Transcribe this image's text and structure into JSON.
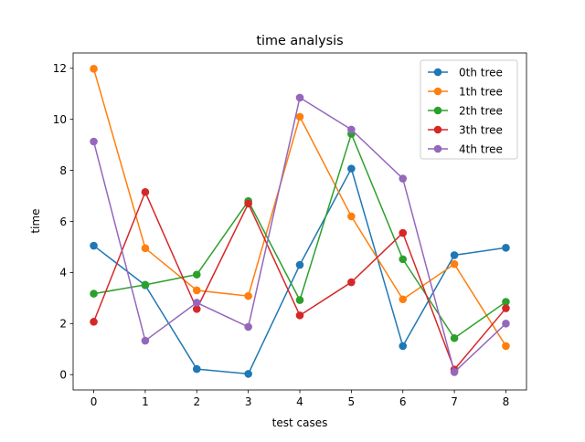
{
  "chart_data": {
    "type": "line",
    "title": "time analysis",
    "xlabel": "test cases",
    "ylabel": "time",
    "x": [
      0,
      1,
      2,
      3,
      4,
      5,
      6,
      7,
      8
    ],
    "xlim": [
      -0.4,
      8.4
    ],
    "ylim": [
      -0.6,
      12.6
    ],
    "xticks": [
      0,
      1,
      2,
      3,
      4,
      5,
      6,
      7,
      8
    ],
    "yticks": [
      0,
      2,
      4,
      6,
      8,
      10,
      12
    ],
    "grid": false,
    "legend": "top-right",
    "series": [
      {
        "name": "0th tree",
        "color": "#1f77b4",
        "values": [
          5.05,
          3.5,
          0.22,
          0.03,
          4.3,
          8.07,
          1.12,
          4.68,
          4.97
        ]
      },
      {
        "name": "1th tree",
        "color": "#ff7f0e",
        "values": [
          11.98,
          4.95,
          3.3,
          3.08,
          10.1,
          6.2,
          2.95,
          4.33,
          1.12
        ]
      },
      {
        "name": "2th tree",
        "color": "#2ca02c",
        "values": [
          3.17,
          3.52,
          3.92,
          6.8,
          2.92,
          9.43,
          4.52,
          1.43,
          2.85
        ]
      },
      {
        "name": "3th tree",
        "color": "#d62728",
        "values": [
          2.07,
          7.15,
          2.57,
          6.7,
          2.32,
          3.62,
          5.55,
          0.2,
          2.6
        ]
      },
      {
        "name": "4th tree",
        "color": "#9467bd",
        "values": [
          9.13,
          1.33,
          2.82,
          1.87,
          10.85,
          9.6,
          7.68,
          0.1,
          2.0
        ]
      }
    ]
  }
}
